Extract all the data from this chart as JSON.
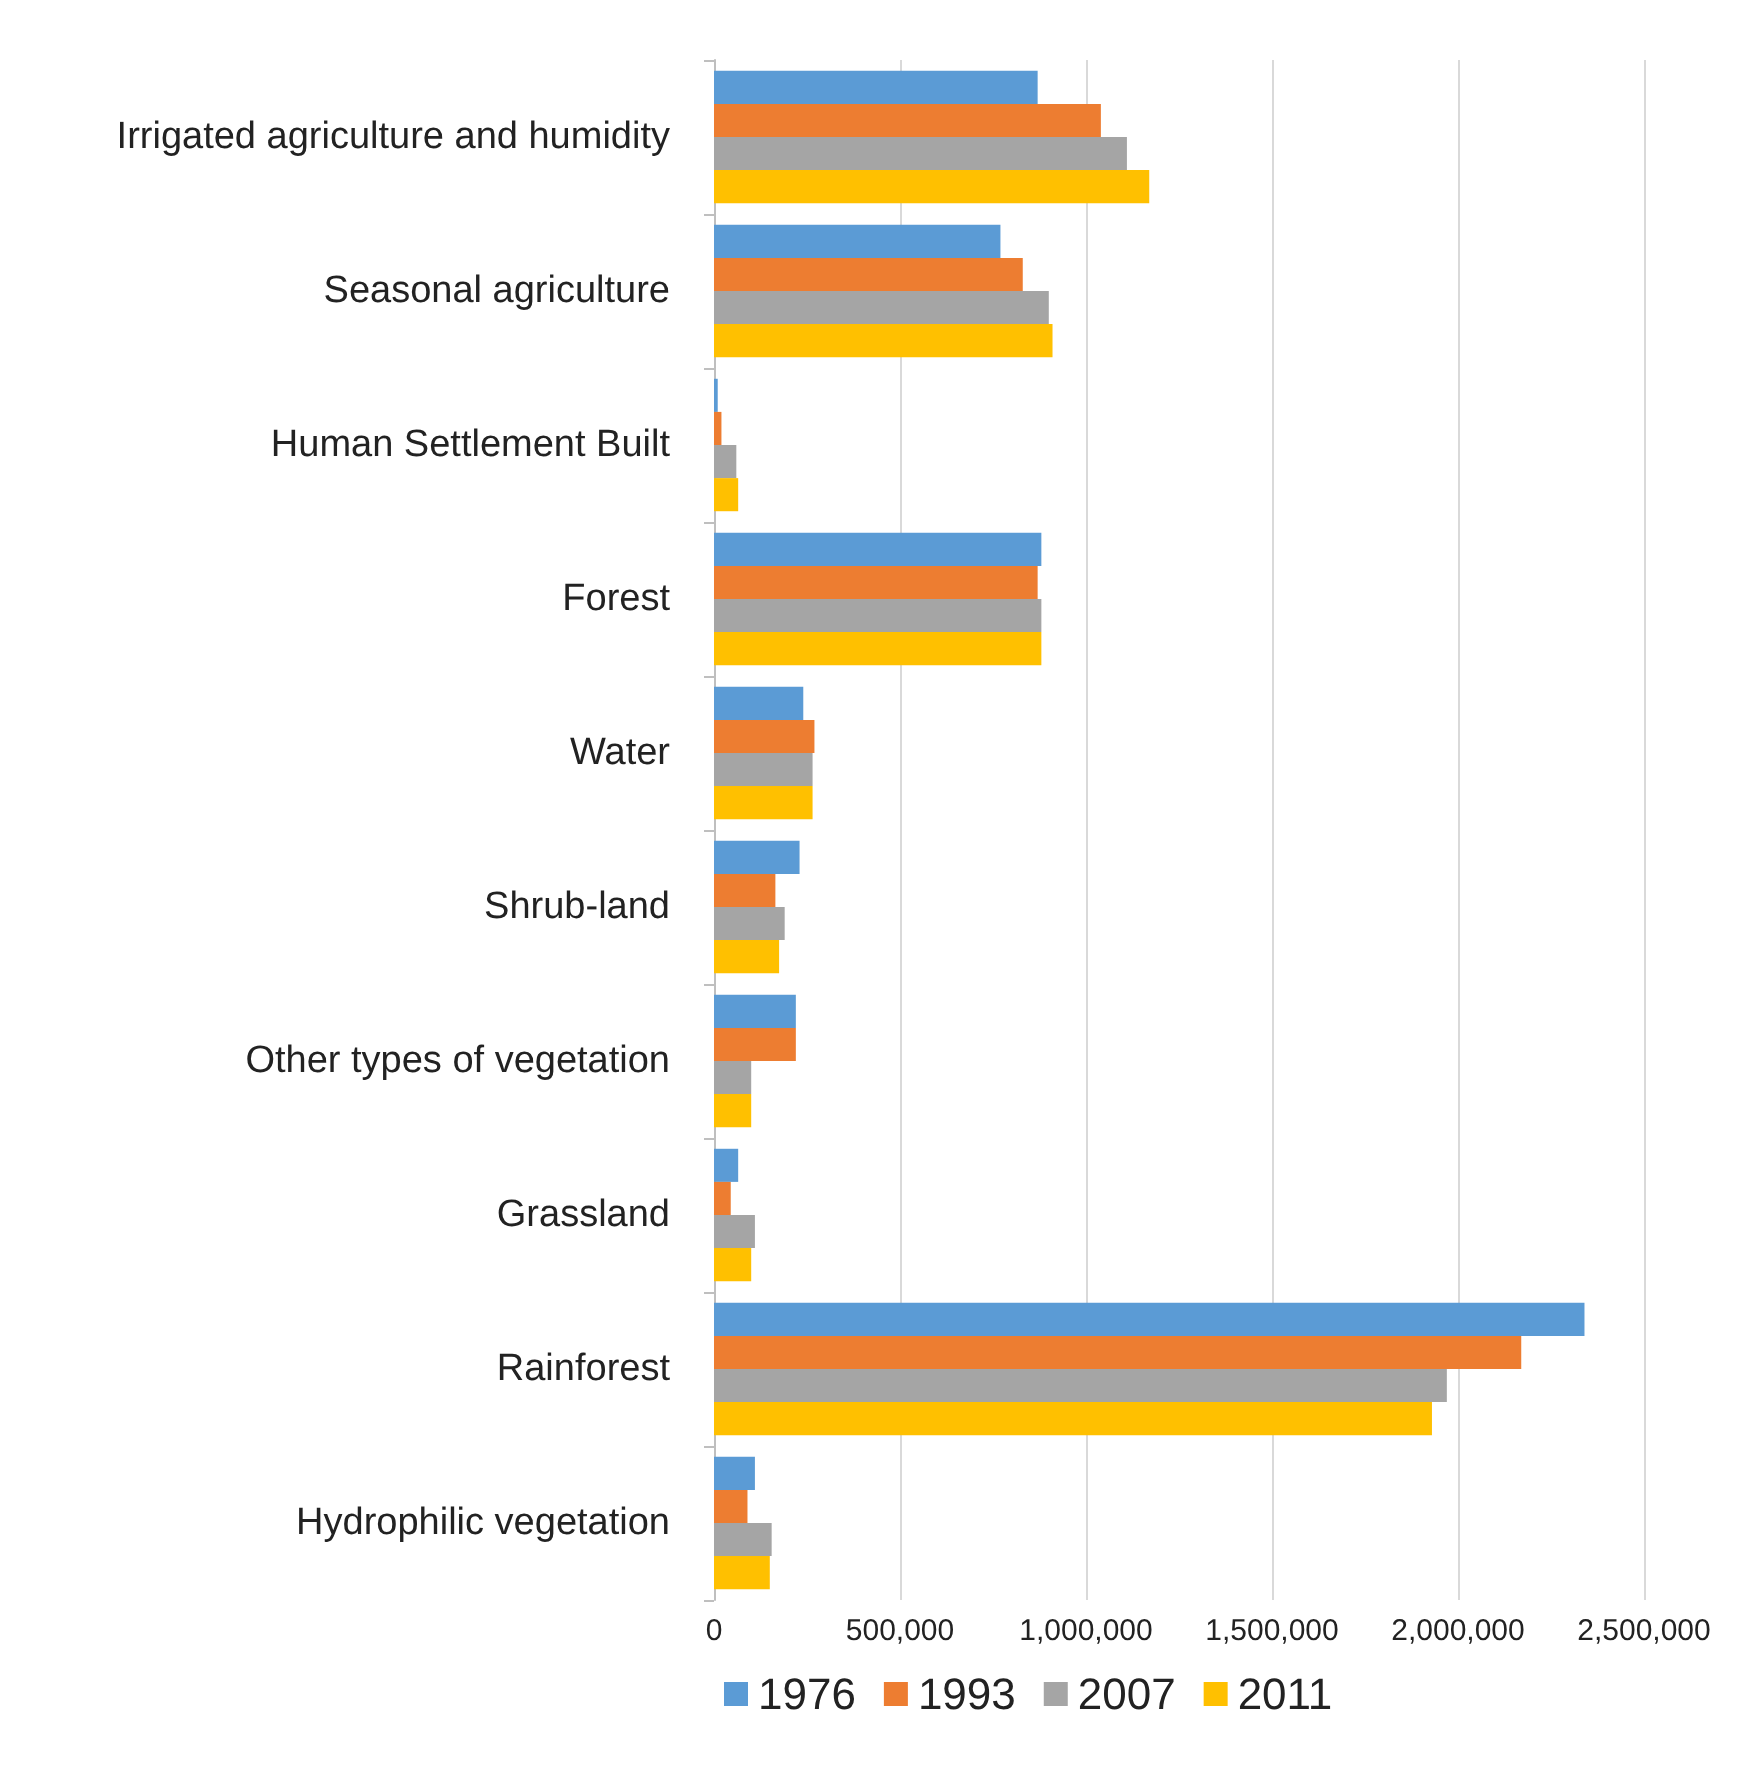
{
  "chart_data": {
    "type": "bar",
    "orientation": "horizontal",
    "categories": [
      "Irrigated agriculture and humidity",
      "Seasonal agriculture",
      "Human Settlement Built",
      "Forest",
      "Water",
      "Shrub-land",
      "Other types of vegetation",
      "Grassland",
      "Rainforest",
      "Hydrophilic vegetation"
    ],
    "series": [
      {
        "name": "1976",
        "color": "#5b9bd5",
        "values": [
          870000,
          770000,
          10000,
          880000,
          240000,
          230000,
          220000,
          65000,
          2340000,
          110000
        ]
      },
      {
        "name": "1993",
        "color": "#ed7d31",
        "values": [
          1040000,
          830000,
          20000,
          870000,
          270000,
          165000,
          220000,
          45000,
          2170000,
          90000
        ]
      },
      {
        "name": "2007",
        "color": "#a5a5a5",
        "values": [
          1110000,
          900000,
          60000,
          880000,
          265000,
          190000,
          100000,
          110000,
          1970000,
          155000
        ]
      },
      {
        "name": "2011",
        "color": "#ffc000",
        "values": [
          1170000,
          910000,
          65000,
          880000,
          265000,
          175000,
          100000,
          100000,
          1930000,
          150000
        ]
      }
    ],
    "xlim": [
      0,
      2500000
    ],
    "xticks": [
      0,
      {
        "value": 500000,
        "label": "500,000"
      },
      {
        "value": 1000000,
        "label": "1,000,000"
      },
      {
        "value": 1500000,
        "label": "1,500,000"
      },
      {
        "value": 2000000,
        "label": "2,000,000"
      },
      {
        "value": 2500000,
        "label": "2,500,000"
      }
    ],
    "grid": "x",
    "legend": "bottom"
  }
}
